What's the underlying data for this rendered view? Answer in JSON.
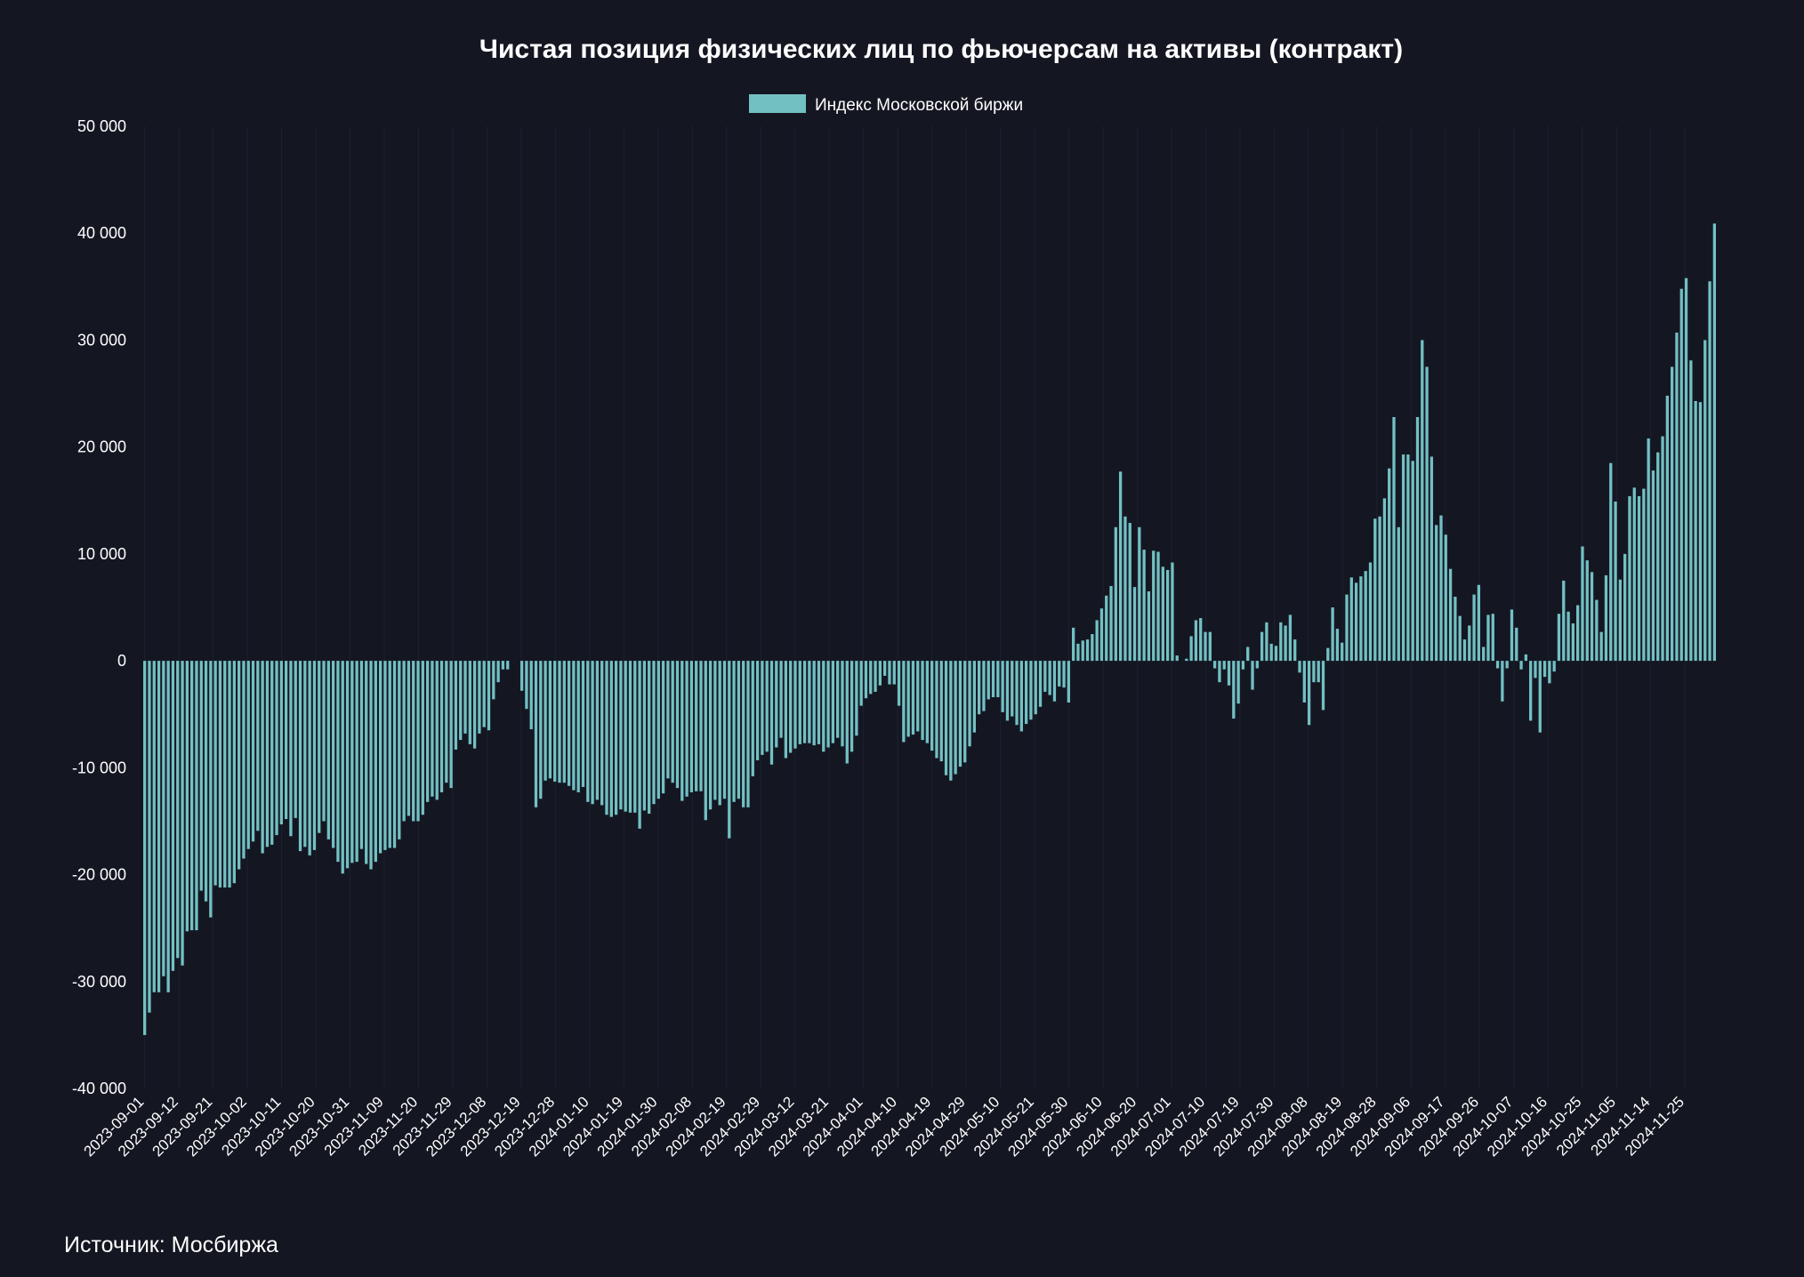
{
  "colors": {
    "background": "#141722",
    "bar": "#73c0c3",
    "grid": "#1c2030",
    "text": "#ffffff"
  },
  "source": "Источник: Мосбиржа",
  "chart_data": {
    "type": "bar",
    "title": "Чистая позиция физических лиц по фьючерсам на активы  (контракт)",
    "xlabel": "",
    "ylabel": "",
    "ylim": [
      -40000,
      50000
    ],
    "y_ticks": [
      50000,
      40000,
      30000,
      20000,
      10000,
      0,
      -10000,
      -20000,
      -30000,
      -40000
    ],
    "y_tick_labels": [
      "50 000",
      "40 000",
      "30 000",
      "20 000",
      "10 000",
      "0",
      "-10 000",
      "-20 000",
      "-30 000",
      "-40 000"
    ],
    "x_tick_labels": [
      "2023-09-01",
      "2023-09-12",
      "2023-09-21",
      "2023-10-02",
      "2023-10-11",
      "2023-10-20",
      "2023-10-31",
      "2023-11-09",
      "2023-11-20",
      "2023-11-29",
      "2023-12-08",
      "2023-12-19",
      "2023-12-28",
      "2024-01-10",
      "2024-01-19",
      "2024-01-30",
      "2024-02-08",
      "2024-02-19",
      "2024-02-29",
      "2024-03-12",
      "2024-03-21",
      "2024-04-01",
      "2024-04-10",
      "2024-04-19",
      "2024-04-29",
      "2024-05-10",
      "2024-05-21",
      "2024-05-30",
      "2024-06-10",
      "2024-06-20",
      "2024-07-01",
      "2024-07-10",
      "2024-07-19",
      "2024-07-30",
      "2024-08-08",
      "2024-08-19",
      "2024-08-28",
      "2024-09-06",
      "2024-09-17",
      "2024-09-26",
      "2024-10-07",
      "2024-10-16",
      "2024-10-25",
      "2024-11-05",
      "2024-11-14",
      "2024-11-25"
    ],
    "legend_position": "top-center",
    "grid": true,
    "series": [
      {
        "name": "Индекс Московской биржи",
        "values": [
          -35000,
          -32900,
          -31000,
          -31000,
          -29500,
          -31000,
          -29000,
          -27800,
          -28500,
          -25300,
          -25200,
          -25200,
          -21500,
          -22500,
          -24000,
          -21000,
          -21200,
          -21200,
          -21200,
          -20800,
          -19500,
          -18500,
          -17600,
          -16900,
          -15900,
          -18000,
          -17400,
          -17200,
          -16300,
          -15300,
          -14800,
          -16400,
          -14700,
          -17800,
          -17400,
          -18200,
          -17700,
          -16100,
          -15000,
          -16700,
          -17500,
          -18800,
          -19900,
          -19400,
          -18900,
          -18800,
          -17600,
          -19000,
          -19500,
          -18800,
          -18000,
          -17700,
          -17500,
          -17500,
          -16700,
          -15000,
          -14500,
          -15000,
          -15000,
          -14400,
          -13200,
          -12700,
          -13000,
          -12300,
          -11400,
          -11900,
          -8300,
          -7400,
          -6800,
          -7800,
          -8200,
          -6800,
          -6200,
          -6500,
          -3600,
          -2000,
          -800,
          -800,
          0,
          0,
          -2800,
          -4500,
          -6400,
          -13700,
          -12900,
          -11200,
          -11000,
          -11300,
          -11400,
          -11400,
          -11700,
          -12100,
          -12300,
          -11800,
          -13200,
          -13400,
          -13000,
          -13500,
          -14400,
          -14600,
          -14400,
          -13900,
          -14100,
          -14200,
          -14200,
          -15700,
          -14000,
          -14300,
          -13400,
          -12900,
          -12400,
          -11000,
          -11400,
          -11900,
          -13100,
          -12700,
          -12300,
          -12200,
          -12200,
          -14900,
          -13900,
          -13000,
          -13500,
          -12900,
          -16600,
          -13200,
          -12900,
          -13700,
          -13700,
          -10800,
          -9300,
          -8800,
          -8500,
          -9700,
          -8100,
          -7200,
          -9100,
          -8600,
          -8200,
          -7800,
          -7700,
          -7700,
          -7900,
          -7800,
          -8500,
          -8100,
          -7700,
          -7200,
          -8000,
          -9600,
          -8500,
          -7000,
          -4200,
          -3500,
          -3100,
          -2900,
          -2300,
          -1400,
          -2200,
          -2200,
          -4200,
          -7600,
          -7100,
          -6900,
          -6600,
          -7400,
          -7700,
          -8400,
          -9100,
          -9400,
          -10700,
          -11200,
          -10600,
          -9900,
          -9500,
          -8000,
          -6700,
          -5000,
          -4700,
          -3600,
          -3400,
          -3400,
          -4800,
          -5600,
          -5200,
          -6000,
          -6600,
          -5900,
          -5500,
          -5000,
          -4300,
          -2900,
          -3200,
          -3800,
          -2400,
          -2500,
          -3900,
          3100,
          1600,
          1900,
          2000,
          2500,
          3800,
          4900,
          6100,
          7000,
          12500,
          17700,
          13500,
          12900,
          6900,
          12500,
          10400,
          6500,
          10300,
          10200,
          8800,
          8500,
          9200,
          500,
          0,
          200,
          2300,
          3800,
          4000,
          2700,
          2700,
          -700,
          -2000,
          -800,
          -2300,
          -5400,
          -4000,
          -800,
          1300,
          -2700,
          -700,
          2700,
          3600,
          1600,
          1400,
          3600,
          3300,
          4300,
          2000,
          -1100,
          -3900,
          -6000,
          -2000,
          -2000,
          -4600,
          1200,
          5000,
          3000,
          1700,
          6200,
          7800,
          7300,
          7900,
          8400,
          9200,
          13300,
          13500,
          15200,
          18000,
          22800,
          12500,
          19300,
          19300,
          18700,
          22800,
          30000,
          27500,
          19100,
          12700,
          13600,
          11800,
          8600,
          6000,
          4200,
          2000,
          3300,
          6200,
          7100,
          1300,
          4300,
          4400,
          -700,
          -3800,
          -700,
          4800,
          3100,
          -800,
          600,
          -5600,
          -1600,
          -6700,
          -1500,
          -2100,
          -1000,
          4400,
          7500,
          4600,
          3500,
          5200,
          10700,
          9400,
          8300,
          5700,
          2700,
          8000,
          18500,
          14900,
          7600,
          10000,
          15400,
          16200,
          15400,
          16100,
          20800,
          17800,
          19500,
          21000,
          24800,
          27500,
          30700,
          34800,
          35800,
          28100,
          24300,
          24200,
          30000,
          35500,
          40900
        ]
      }
    ]
  }
}
